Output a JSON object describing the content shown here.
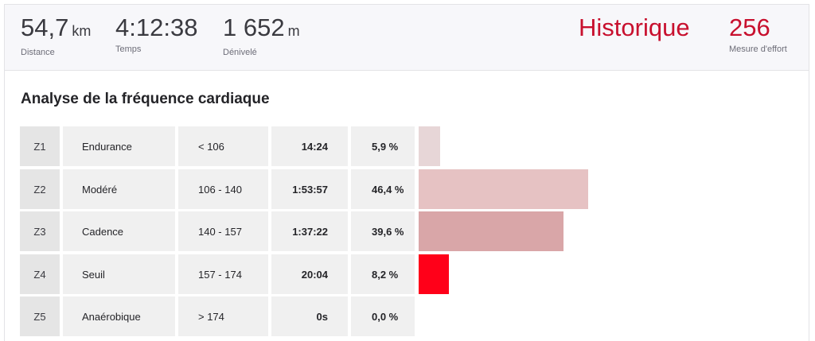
{
  "summary": {
    "distance": {
      "value": "54,7",
      "unit": "km",
      "label": "Distance"
    },
    "time": {
      "value": "4:12:38",
      "label": "Temps"
    },
    "elevation": {
      "value": "1 652",
      "unit": "m",
      "label": "Dénivelé"
    },
    "history": {
      "label": "Historique"
    },
    "effort": {
      "value": "256",
      "label": "Mesure d'effort"
    }
  },
  "analysis": {
    "title": "Analyse de la fréquence cardiaque",
    "zones": [
      {
        "zone": "Z1",
        "name": "Endurance",
        "range": "< 106",
        "time": "14:24",
        "percent": "5,9 %",
        "share": 5.9,
        "color": "#e7d6d7"
      },
      {
        "zone": "Z2",
        "name": "Modéré",
        "range": "106 - 140",
        "time": "1:53:57",
        "percent": "46,4 %",
        "share": 46.4,
        "color": "#e6c2c3"
      },
      {
        "zone": "Z3",
        "name": "Cadence",
        "range": "140 - 157",
        "time": "1:37:22",
        "percent": "39,6 %",
        "share": 39.6,
        "color": "#d9a6a8"
      },
      {
        "zone": "Z4",
        "name": "Seuil",
        "range": "157 - 174",
        "time": "20:04",
        "percent": "8,2 %",
        "share": 8.2,
        "color": "#ff0019"
      },
      {
        "zone": "Z5",
        "name": "Anaérobique",
        "range": "> 174",
        "time": "0s",
        "percent": "0,0 %",
        "share": 0.0,
        "color": "#c8102e"
      }
    ]
  }
}
